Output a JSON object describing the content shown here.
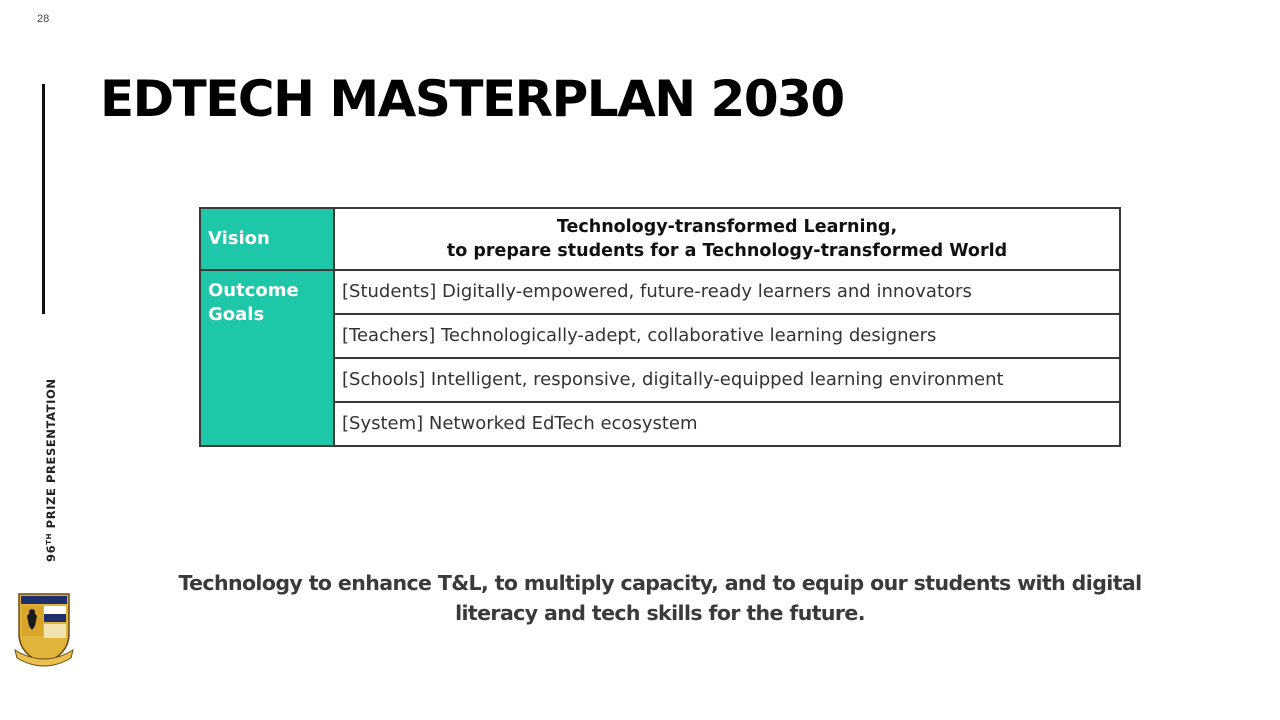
{
  "slide": {
    "page_number": "28",
    "title": "EDTECH MASTERPLAN 2030",
    "side_label_prefix": "96",
    "side_label_sup": "TH",
    "side_label_rest": " PRIZE PRESENTATION"
  },
  "table": {
    "vision_label": "Vision",
    "vision_line1": "Technology-transformed Learning,",
    "vision_line2": "to prepare students for a Technology-transformed World",
    "goals_label": "Outcome Goals",
    "goals": [
      "[Students] Digitally-empowered, future-ready learners and innovators",
      "[Teachers] Technologically-adept, collaborative learning designers",
      "[Schools] Intelligent, responsive, digitally-equipped learning environment",
      "[System] Networked EdTech ecosystem"
    ]
  },
  "tagline": {
    "line1": "Technology to enhance T&L, to multiply capacity, and to equip our students with digital",
    "line2": "literacy and tech skills for the future."
  },
  "colors": {
    "label_fill": "#1ec7a7",
    "crest_gold": "#e0b43a",
    "crest_navy": "#1f2f6b"
  }
}
